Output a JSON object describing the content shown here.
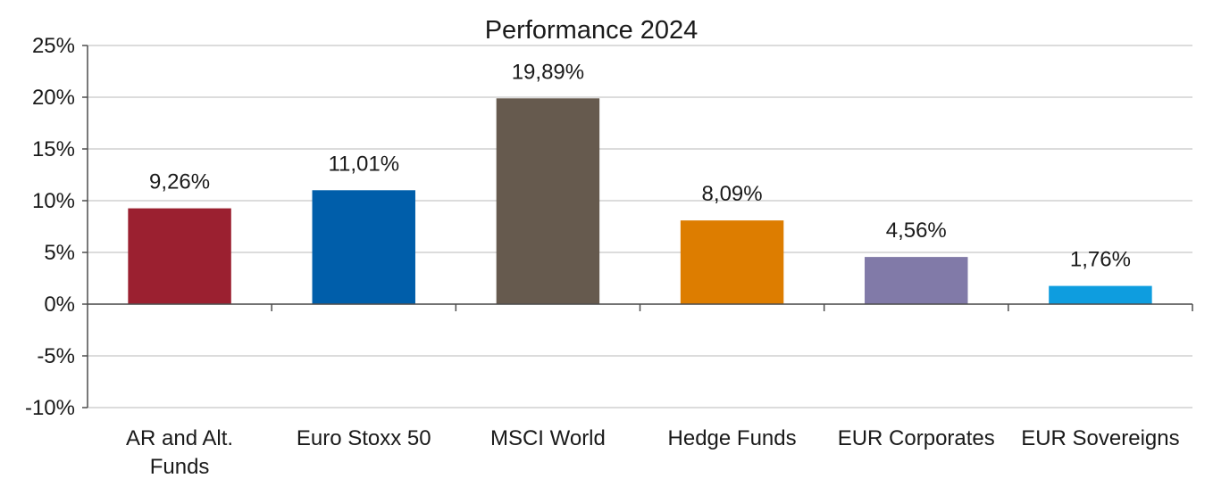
{
  "chart_data": {
    "type": "bar",
    "title": "Performance 2024",
    "xlabel": "",
    "ylabel": "",
    "categories": [
      [
        "AR and Alt.",
        "Funds"
      ],
      [
        "Euro Stoxx 50"
      ],
      [
        "MSCI World"
      ],
      [
        "Hedge Funds"
      ],
      [
        "EUR Corporates"
      ],
      [
        "EUR Sovereigns"
      ]
    ],
    "values": [
      9.26,
      11.01,
      19.89,
      8.09,
      4.56,
      1.76
    ],
    "data_labels": [
      "9,26%",
      "11,01%",
      "19,89%",
      "8,09%",
      "4,56%",
      "1,76%"
    ],
    "colors": [
      "#9b2030",
      "#005eaa",
      "#665a4e",
      "#dd7d00",
      "#817aa8",
      "#0e9ddf"
    ],
    "ylim": [
      -10,
      25
    ],
    "yticks": [
      25,
      20,
      15,
      10,
      5,
      0,
      -5,
      -10
    ],
    "ytick_labels": [
      "25%",
      "20%",
      "15%",
      "10%",
      "5%",
      "0%",
      "-5%",
      "-10%"
    ],
    "grid": true,
    "legend": "none"
  }
}
